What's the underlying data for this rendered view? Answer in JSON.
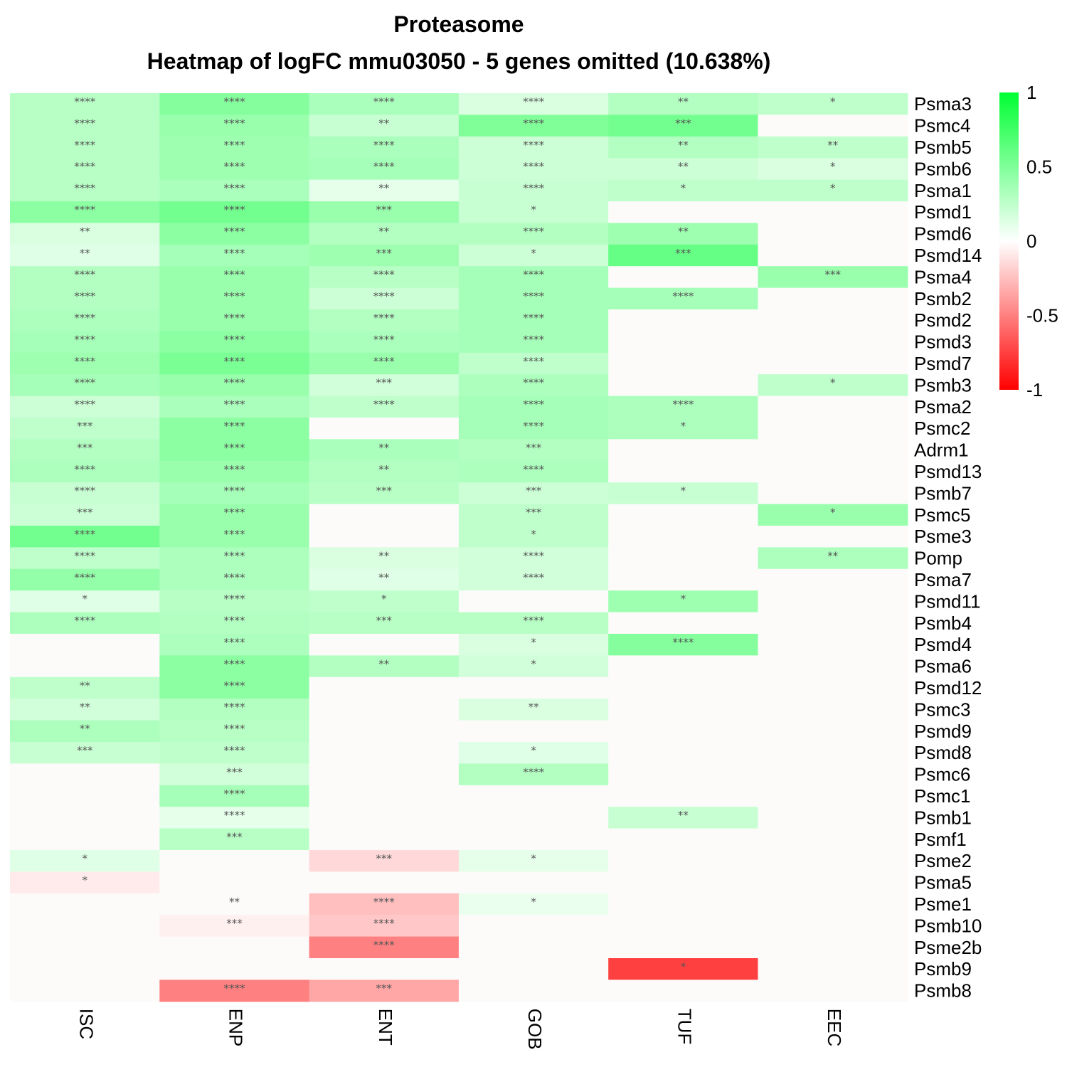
{
  "chart_data": {
    "type": "heatmap",
    "title": "Proteasome",
    "subtitle": "Heatmap of logFC mmu03050 - 5 genes omitted (10.638%)",
    "columns": [
      "ISC",
      "ENP",
      "ENT",
      "GOB",
      "TUF",
      "EEC"
    ],
    "rows": [
      "Psma3",
      "Psmc4",
      "Psmb5",
      "Psmb6",
      "Psma1",
      "Psmd1",
      "Psmd6",
      "Psmd14",
      "Psma4",
      "Psmb2",
      "Psmd2",
      "Psmd3",
      "Psmd7",
      "Psmb3",
      "Psma2",
      "Psmc2",
      "Adrm1",
      "Psmd13",
      "Psmb7",
      "Psmc5",
      "Psme3",
      "Pomp",
      "Psma7",
      "Psmd11",
      "Psmb4",
      "Psmd4",
      "Psma6",
      "Psmd12",
      "Psmc3",
      "Psmd9",
      "Psmd8",
      "Psmc6",
      "Psmc1",
      "Psmb1",
      "Psmf1",
      "Psme2",
      "Psma5",
      "Psme1",
      "Psmb10",
      "Psme2b",
      "Psmb9",
      "Psmb8"
    ],
    "values": [
      [
        0.28,
        0.48,
        0.33,
        0.15,
        0.3,
        0.25
      ],
      [
        0.28,
        0.4,
        0.22,
        0.5,
        0.55,
        0
      ],
      [
        0.28,
        0.38,
        0.33,
        0.2,
        0.3,
        0.25
      ],
      [
        0.28,
        0.38,
        0.35,
        0.2,
        0.2,
        0.15
      ],
      [
        0.28,
        0.33,
        0.1,
        0.22,
        0.25,
        0.25
      ],
      [
        0.45,
        0.55,
        0.4,
        0.22,
        0,
        0
      ],
      [
        0.15,
        0.45,
        0.3,
        0.3,
        0.38,
        0
      ],
      [
        0.12,
        0.35,
        0.38,
        0.2,
        0.6,
        0
      ],
      [
        0.3,
        0.4,
        0.28,
        0.35,
        0,
        0.4
      ],
      [
        0.3,
        0.4,
        0.2,
        0.35,
        0.35,
        0
      ],
      [
        0.32,
        0.4,
        0.3,
        0.35,
        0,
        0
      ],
      [
        0.35,
        0.45,
        0.33,
        0.35,
        0,
        0
      ],
      [
        0.38,
        0.52,
        0.4,
        0.25,
        0,
        0
      ],
      [
        0.35,
        0.4,
        0.18,
        0.32,
        0,
        0.25
      ],
      [
        0.2,
        0.33,
        0.25,
        0.35,
        0.32,
        0
      ],
      [
        0.25,
        0.45,
        0,
        0.35,
        0.32,
        0
      ],
      [
        0.3,
        0.45,
        0.33,
        0.3,
        0,
        0
      ],
      [
        0.32,
        0.4,
        0.3,
        0.32,
        0,
        0
      ],
      [
        0.22,
        0.35,
        0.28,
        0.2,
        0.22,
        0
      ],
      [
        0.2,
        0.4,
        0,
        0.25,
        0,
        0.4
      ],
      [
        0.55,
        0.4,
        0,
        0.25,
        0,
        0
      ],
      [
        0.25,
        0.32,
        0.15,
        0.18,
        0,
        0.32
      ],
      [
        0.42,
        0.32,
        0.12,
        0.18,
        0,
        0
      ],
      [
        0.12,
        0.28,
        0.25,
        0,
        0.38,
        0
      ],
      [
        0.32,
        0.3,
        0.28,
        0.28,
        0,
        0
      ],
      [
        0,
        0.32,
        0,
        0.15,
        0.48,
        0
      ],
      [
        0,
        0.45,
        0.3,
        0.18,
        0,
        0
      ],
      [
        0.25,
        0.45,
        0,
        0,
        0,
        0
      ],
      [
        0.18,
        0.3,
        0,
        0.15,
        0,
        0
      ],
      [
        0.32,
        0.28,
        0,
        0,
        0,
        0
      ],
      [
        0.22,
        0.25,
        0,
        0.12,
        0,
        0
      ],
      [
        0,
        0.18,
        0,
        0.3,
        0,
        0
      ],
      [
        0,
        0.35,
        0,
        0,
        0,
        0
      ],
      [
        0,
        0.1,
        0,
        0,
        0.22,
        0
      ],
      [
        0,
        0.28,
        0,
        0,
        0,
        0
      ],
      [
        0.12,
        0,
        -0.15,
        0.1,
        0,
        0
      ],
      [
        -0.08,
        0,
        0,
        0,
        0,
        0
      ],
      [
        0,
        0,
        -0.25,
        0.08,
        0,
        0
      ],
      [
        0,
        -0.06,
        -0.22,
        0,
        0,
        0
      ],
      [
        0,
        0,
        -0.5,
        0,
        0,
        0
      ],
      [
        0,
        0,
        0,
        0,
        -0.75,
        0
      ],
      [
        0,
        -0.5,
        -0.35,
        0,
        0,
        0
      ]
    ],
    "significance": [
      [
        "****",
        "****",
        "****",
        "****",
        "**",
        "*"
      ],
      [
        "****",
        "****",
        "**",
        "****",
        "***",
        ""
      ],
      [
        "****",
        "****",
        "****",
        "****",
        "**",
        "**"
      ],
      [
        "****",
        "****",
        "****",
        "****",
        "**",
        "*"
      ],
      [
        "****",
        "****",
        "**",
        "****",
        "*",
        "*"
      ],
      [
        "****",
        "****",
        "***",
        "*",
        "",
        ""
      ],
      [
        "**",
        "****",
        "**",
        "****",
        "**",
        ""
      ],
      [
        "**",
        "****",
        "***",
        "*",
        "***",
        ""
      ],
      [
        "****",
        "****",
        "****",
        "****",
        "",
        "***"
      ],
      [
        "****",
        "****",
        "****",
        "****",
        "****",
        ""
      ],
      [
        "****",
        "****",
        "****",
        "****",
        "",
        ""
      ],
      [
        "****",
        "****",
        "****",
        "****",
        "",
        ""
      ],
      [
        "****",
        "****",
        "****",
        "****",
        "",
        ""
      ],
      [
        "****",
        "****",
        "***",
        "****",
        "",
        "*"
      ],
      [
        "****",
        "****",
        "****",
        "****",
        "****",
        ""
      ],
      [
        "***",
        "****",
        "",
        "****",
        "*",
        ""
      ],
      [
        "***",
        "****",
        "**",
        "***",
        "",
        ""
      ],
      [
        "****",
        "****",
        "**",
        "****",
        "",
        ""
      ],
      [
        "****",
        "****",
        "***",
        "***",
        "*",
        ""
      ],
      [
        "***",
        "****",
        "",
        "***",
        "",
        "*"
      ],
      [
        "****",
        "****",
        "",
        "*",
        "",
        ""
      ],
      [
        "****",
        "****",
        "**",
        "****",
        "",
        "**"
      ],
      [
        "****",
        "****",
        "**",
        "****",
        "",
        ""
      ],
      [
        "*",
        "****",
        "*",
        "",
        "*",
        ""
      ],
      [
        "****",
        "****",
        "***",
        "****",
        "",
        ""
      ],
      [
        "",
        "****",
        "",
        "*",
        "****",
        ""
      ],
      [
        "",
        "****",
        "**",
        "*",
        "",
        ""
      ],
      [
        "**",
        "****",
        "",
        "",
        "",
        ""
      ],
      [
        "**",
        "****",
        "",
        "**",
        "",
        ""
      ],
      [
        "**",
        "****",
        "",
        "",
        "",
        ""
      ],
      [
        "***",
        "****",
        "",
        "*",
        "",
        ""
      ],
      [
        "",
        "***",
        "",
        "****",
        "",
        ""
      ],
      [
        "",
        "****",
        "",
        "",
        "",
        ""
      ],
      [
        "",
        "****",
        "",
        "",
        "**",
        ""
      ],
      [
        "",
        "***",
        "",
        "",
        "",
        ""
      ],
      [
        "*",
        "",
        "***",
        "*",
        "",
        ""
      ],
      [
        "*",
        "",
        "",
        "",
        "",
        ""
      ],
      [
        "",
        "**",
        "****",
        "*",
        "",
        ""
      ],
      [
        "",
        "***",
        "****",
        "",
        "",
        ""
      ],
      [
        "",
        "",
        "****",
        "",
        "",
        ""
      ],
      [
        "",
        "",
        "",
        "",
        "*",
        ""
      ],
      [
        "",
        "****",
        "***",
        "",
        "",
        ""
      ]
    ],
    "legend": {
      "ticks": [
        "1",
        "0.5",
        "0",
        "-0.5",
        "-1"
      ],
      "tick_values": [
        1,
        0.5,
        0,
        -0.5,
        -1
      ],
      "range": [
        -1,
        1
      ],
      "colors": {
        "high": "#00ff33",
        "mid": "#ffffff",
        "low": "#ff0000"
      }
    },
    "na_color": "#fcfbfa",
    "grid": false
  }
}
